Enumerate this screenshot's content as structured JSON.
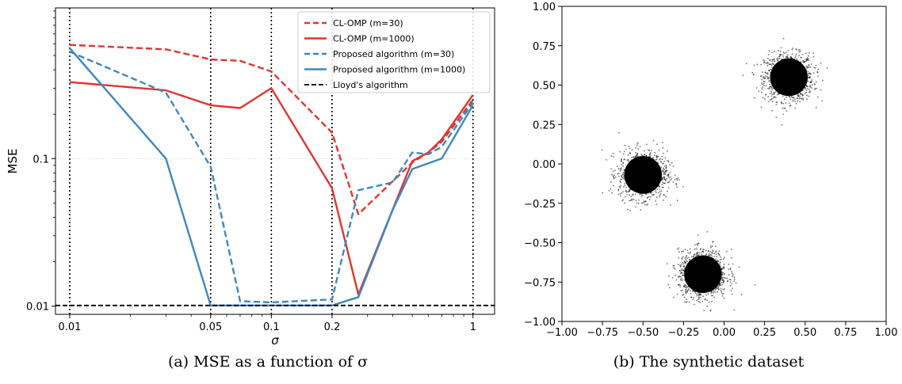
{
  "captions": {
    "left": "(a) MSE as a function of σ",
    "right": "(b) The synthetic dataset"
  },
  "chart_data": [
    {
      "type": "line",
      "title": "",
      "xlabel": "σ",
      "ylabel": "MSE",
      "xscale": "log",
      "yscale": "log",
      "xlim": [
        0.0085,
        1.28
      ],
      "ylim": [
        0.0088,
        1.05
      ],
      "xticks": [
        {
          "value": 0.01,
          "label": "0.01"
        },
        {
          "value": 0.05,
          "label": "0.05"
        },
        {
          "value": 0.1,
          "label": "0.1"
        },
        {
          "value": 0.2,
          "label": "0.2"
        },
        {
          "value": 1,
          "label": "1"
        }
      ],
      "yticks": [
        {
          "value": 0.01,
          "label": "0.01"
        },
        {
          "value": 0.1,
          "label": "0.1"
        }
      ],
      "vlines": [
        0.01,
        0.05,
        0.1,
        0.2,
        1
      ],
      "grid": "horizontal at 0.1",
      "legend_position": "top-right",
      "series": [
        {
          "name": "CL-OMP (m=30)",
          "color": "#e03530",
          "dash": "dashed",
          "x": [
            0.01,
            0.03,
            0.05,
            0.07,
            0.1,
            0.2,
            0.27,
            0.5,
            0.6,
            0.7,
            1.0
          ],
          "y": [
            0.59,
            0.55,
            0.47,
            0.46,
            0.39,
            0.15,
            0.042,
            0.094,
            0.11,
            0.13,
            0.25
          ]
        },
        {
          "name": "CL-OMP (m=1000)",
          "color": "#e03530",
          "dash": "solid",
          "x": [
            0.01,
            0.03,
            0.05,
            0.07,
            0.1,
            0.2,
            0.27,
            0.5,
            0.6,
            0.7,
            1.0
          ],
          "y": [
            0.33,
            0.29,
            0.23,
            0.22,
            0.3,
            0.063,
            0.012,
            0.096,
            0.11,
            0.135,
            0.27
          ]
        },
        {
          "name": "Proposed algorithm (m=30)",
          "color": "#3f87c1",
          "dash": "dashed",
          "x": [
            0.01,
            0.03,
            0.05,
            0.07,
            0.1,
            0.2,
            0.27,
            0.4,
            0.5,
            0.6,
            0.7,
            1.0
          ],
          "y": [
            0.53,
            0.28,
            0.088,
            0.0108,
            0.0106,
            0.0111,
            0.061,
            0.069,
            0.11,
            0.107,
            0.12,
            0.24
          ]
        },
        {
          "name": "Proposed algorithm (m=1000)",
          "color": "#3f87c1",
          "dash": "solid",
          "x": [
            0.01,
            0.03,
            0.05,
            0.07,
            0.1,
            0.2,
            0.27,
            0.4,
            0.5,
            0.7,
            1.0
          ],
          "y": [
            0.56,
            0.1,
            0.0101,
            0.0101,
            0.0101,
            0.0101,
            0.0115,
            0.045,
            0.085,
            0.1,
            0.23
          ]
        },
        {
          "name": "Lloyd's algorithm",
          "color": "#000000",
          "dash": "dashed",
          "x": [
            0.0085,
            1.28
          ],
          "y": [
            0.0101,
            0.0101
          ]
        }
      ]
    },
    {
      "type": "scatter",
      "title": "",
      "xlabel": "",
      "ylabel": "",
      "xlim": [
        -1.0,
        1.0
      ],
      "ylim": [
        -1.0,
        1.0
      ],
      "xticks": [
        "−1.00",
        "−0.75",
        "−0.50",
        "−0.25",
        "0.00",
        "0.25",
        "0.50",
        "0.75",
        "1.00"
      ],
      "yticks": [
        "1.00",
        "0.75",
        "0.50",
        "0.25",
        "0.00",
        "−0.25",
        "−0.50",
        "−0.75",
        "−1.00"
      ],
      "grid": "off",
      "point_color": "#000000",
      "clusters": [
        {
          "center_x": 0.4,
          "center_y": 0.55,
          "spread": 0.075
        },
        {
          "center_x": -0.5,
          "center_y": -0.07,
          "spread": 0.075
        },
        {
          "center_x": -0.13,
          "center_y": -0.7,
          "spread": 0.075
        }
      ]
    }
  ]
}
